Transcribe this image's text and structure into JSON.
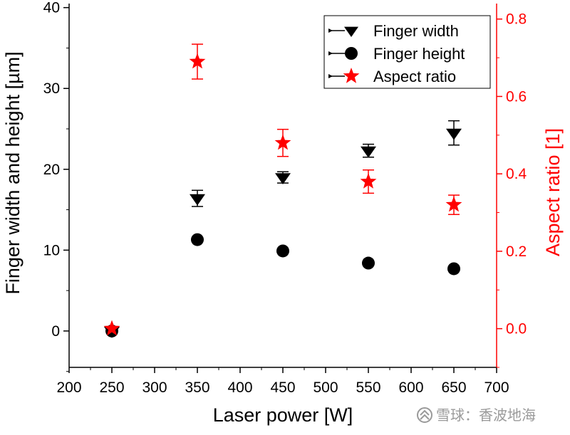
{
  "colors": {
    "black": "#000000",
    "red": "#ff0000",
    "watermark": "#9a9a9a"
  },
  "watermark": {
    "text": "雪球：香波地海",
    "icon": "snowball-logo-icon"
  },
  "chart_data": {
    "type": "scatter",
    "xlabel": "Laser power [W]",
    "ylabel_left": "Finger width and height [µm]",
    "ylabel_right": "Aspect ratio [1]",
    "xlim": [
      200,
      700
    ],
    "ylim_left": [
      -4.5,
      40.5
    ],
    "ylim_right": [
      -0.1,
      0.84
    ],
    "xticks": [
      200,
      250,
      300,
      350,
      400,
      450,
      500,
      550,
      600,
      650,
      700
    ],
    "yticks_left": [
      0,
      10,
      20,
      30,
      40
    ],
    "yticks_right": [
      0.0,
      0.2,
      0.4,
      0.6,
      0.8
    ],
    "yticks_right_labels": [
      "0.0",
      "0.2",
      "0.4",
      "0.6",
      "0.8"
    ],
    "legend_position": "top-right",
    "grid": false,
    "series": [
      {
        "name": "Finger width",
        "axis": "left",
        "marker": "triangle-down",
        "color": "#000000",
        "x": [
          250,
          350,
          450,
          550,
          650
        ],
        "y": [
          0.0,
          16.4,
          19.0,
          22.3,
          24.5
        ],
        "yerr": [
          0,
          1.0,
          0.7,
          0.8,
          1.5
        ]
      },
      {
        "name": "Finger height",
        "axis": "left",
        "marker": "circle",
        "color": "#000000",
        "x": [
          250,
          350,
          450,
          550,
          650
        ],
        "y": [
          0.0,
          11.3,
          9.9,
          8.4,
          7.7
        ],
        "yerr": [
          0,
          0,
          0,
          0,
          0
        ]
      },
      {
        "name": "Aspect ratio",
        "axis": "right",
        "marker": "star",
        "color": "#ff0000",
        "x": [
          250,
          350,
          450,
          550,
          650
        ],
        "y": [
          0.0,
          0.69,
          0.48,
          0.38,
          0.32
        ],
        "yerr": [
          0,
          0.045,
          0.035,
          0.03,
          0.025
        ]
      }
    ]
  }
}
